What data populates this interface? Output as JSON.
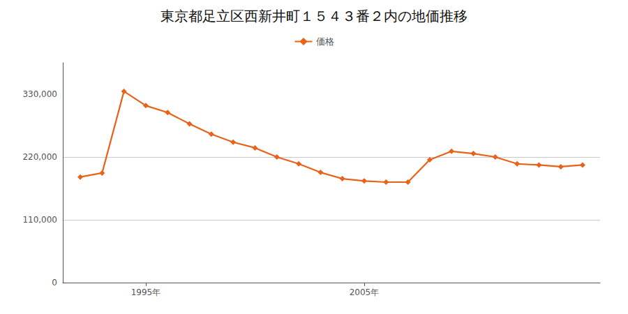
{
  "chart_data": {
    "type": "line",
    "title": "東京都足立区西新井町１５４３番２内の地価推移",
    "x": [
      1992,
      1993,
      1994,
      1995,
      1996,
      1997,
      1998,
      1999,
      2000,
      2001,
      2002,
      2003,
      2004,
      2005,
      2006,
      2007,
      2008,
      2009,
      2010,
      2011,
      2012,
      2013,
      2014,
      2015
    ],
    "series": [
      {
        "name": "価格",
        "color": "#E8621A",
        "marker": "diamond",
        "values": [
          185000,
          192000,
          335000,
          310000,
          298000,
          278000,
          260000,
          246000,
          236000,
          220000,
          208000,
          193000,
          182000,
          178000,
          176000,
          176000,
          215000,
          230000,
          226000,
          220000,
          208000,
          206000,
          203000,
          206000
        ]
      }
    ],
    "xlim": [
      1991.2,
      2015.8
    ],
    "xticks": [
      {
        "value": 1995,
        "label": "1995年"
      },
      {
        "value": 2005,
        "label": "2005年"
      }
    ],
    "ylim": [
      0,
      385000
    ],
    "yticks": [
      0,
      {
        "value": 110000,
        "label": "110,000"
      },
      {
        "value": 220000,
        "label": "220,000"
      },
      {
        "value": 330000,
        "label": "330,000"
      }
    ],
    "grid": "y",
    "legend": "top"
  }
}
